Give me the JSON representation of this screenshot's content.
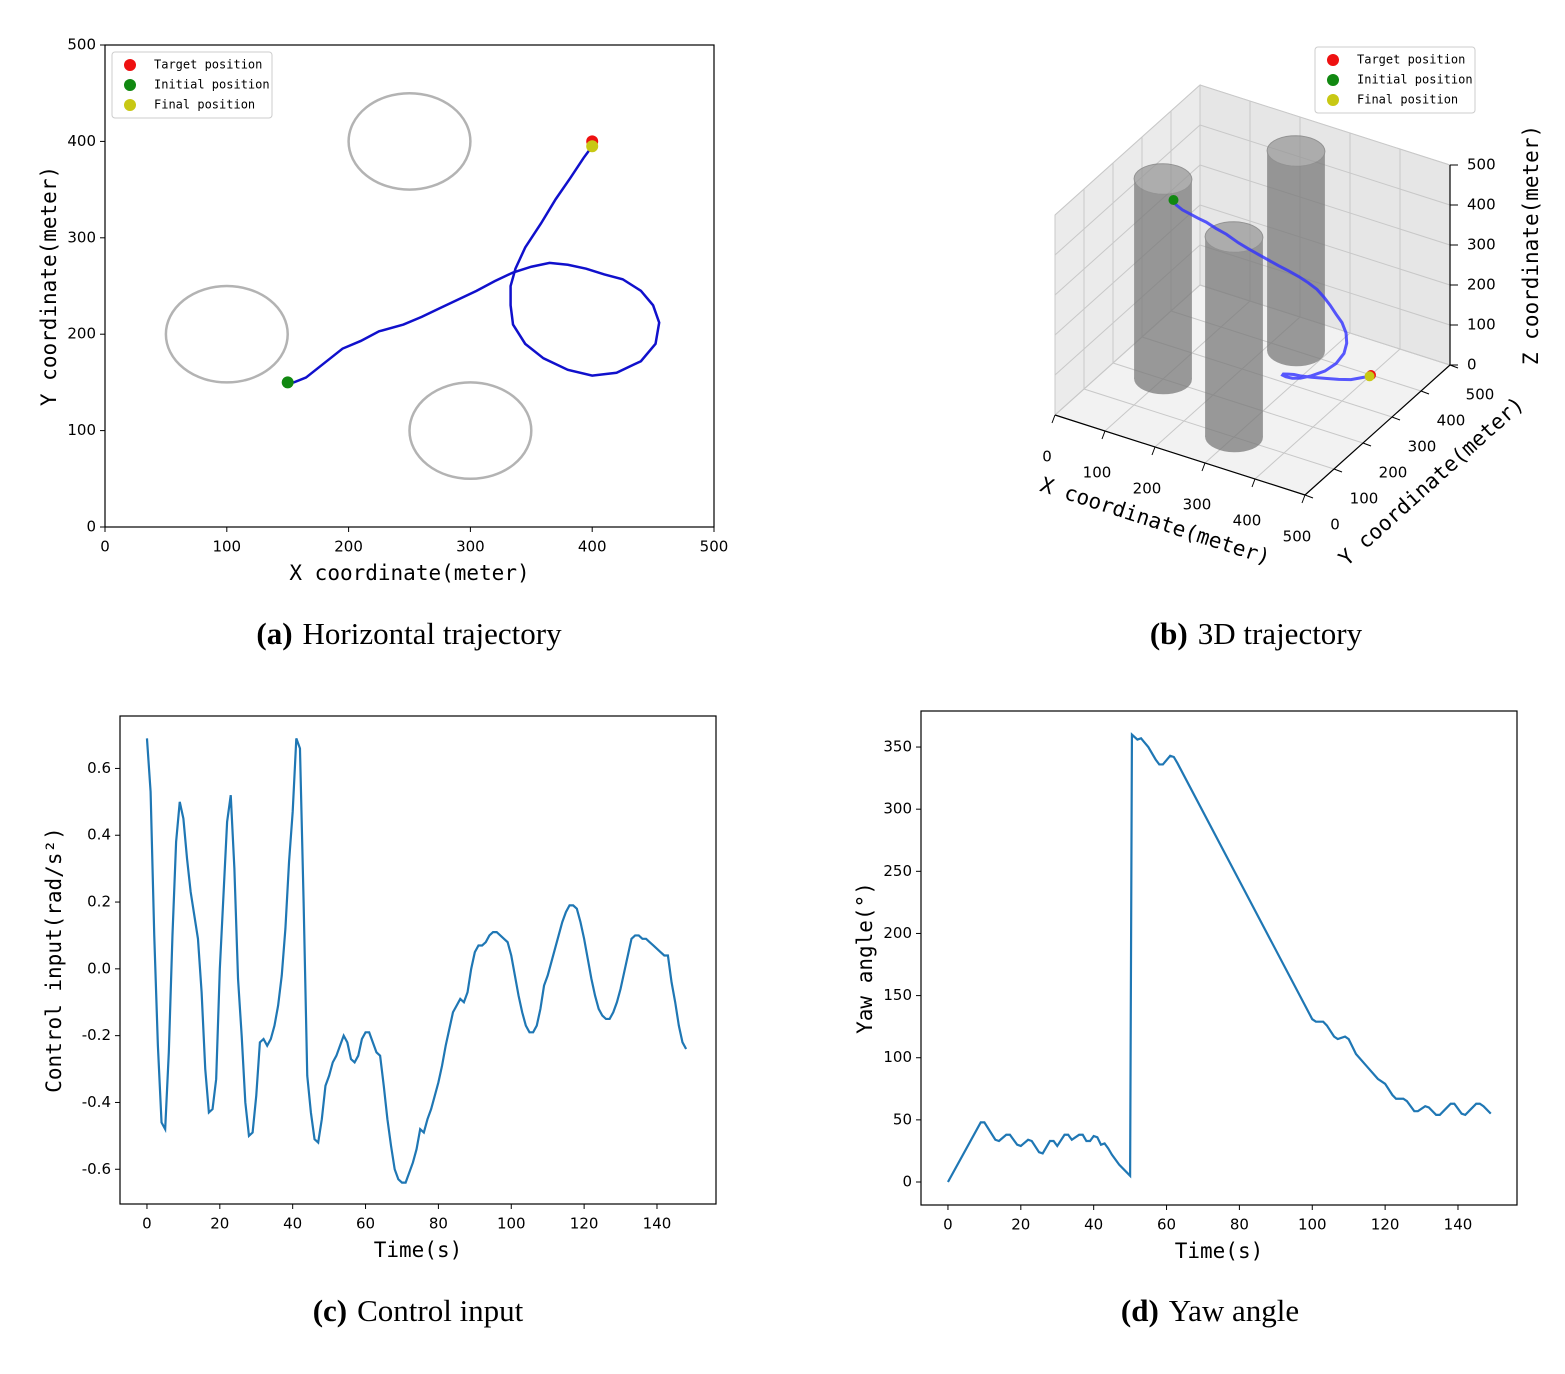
{
  "chart_data": [
    {
      "type": "trajectory-2d",
      "caption_label": "(a)",
      "caption": "Horizontal trajectory",
      "xlabel": "X coordinate(meter)",
      "ylabel": "Y coordinate(meter)",
      "xlim": [
        0,
        500
      ],
      "ylim": [
        0,
        500
      ],
      "xticks": [
        0,
        100,
        200,
        300,
        400,
        500
      ],
      "yticks": [
        0,
        100,
        200,
        300,
        400,
        500
      ],
      "obstacle_color": "#b3b3b3",
      "obstacles": [
        {
          "x": 250,
          "y": 400,
          "r": 50
        },
        {
          "x": 100,
          "y": 200,
          "r": 50
        },
        {
          "x": 300,
          "y": 100,
          "r": 50
        }
      ],
      "trajectory": {
        "color": "#1010cc",
        "x": [
          150,
          155,
          165,
          175,
          185,
          195,
          210,
          225,
          245,
          260,
          275,
          290,
          305,
          320,
          335,
          350,
          365,
          380,
          395,
          410,
          425,
          440,
          450,
          455,
          452,
          440,
          420,
          400,
          380,
          360,
          345,
          335,
          333,
          333,
          337,
          345,
          358,
          370,
          382,
          393,
          400
        ],
        "y": [
          150,
          150,
          155,
          165,
          175,
          185,
          193,
          203,
          210,
          218,
          227,
          236,
          245,
          255,
          264,
          270,
          274,
          272,
          268,
          262,
          257,
          245,
          230,
          212,
          190,
          172,
          160,
          157,
          163,
          175,
          190,
          210,
          230,
          250,
          268,
          290,
          315,
          340,
          362,
          383,
          395
        ]
      },
      "points": [
        {
          "name": "Target position",
          "color": "#ee1111",
          "x": 400,
          "y": 400
        },
        {
          "name": "Initial position",
          "color": "#118811",
          "x": 150,
          "y": 150
        },
        {
          "name": "Final position",
          "color": "#c8c814",
          "x": 400,
          "y": 395
        }
      ],
      "legend": "upper left"
    },
    {
      "type": "trajectory-3d",
      "caption_label": "(b)",
      "caption": "3D trajectory",
      "xlabel": "X coordinate(meter)",
      "ylabel": "Y coordinate(meter)",
      "zlabel": "Z coordinate(meter)",
      "xlim": [
        0,
        500
      ],
      "ylim": [
        0,
        500
      ],
      "zlim": [
        0,
        500
      ],
      "xticks": [
        0,
        100,
        200,
        300,
        400,
        500
      ],
      "yticks": [
        0,
        100,
        200,
        300,
        400,
        500
      ],
      "zticks": [
        0,
        100,
        200,
        300,
        400,
        500
      ],
      "obstacle_color": "#7a7a7a",
      "obstacles": [
        {
          "x": 250,
          "y": 400,
          "r": 50,
          "height": 500
        },
        {
          "x": 100,
          "y": 200,
          "r": 50,
          "height": 500
        },
        {
          "x": 300,
          "y": 100,
          "r": 50,
          "height": 500
        }
      ],
      "trajectory": {
        "color": "#3030ff",
        "x": [
          150,
          155,
          165,
          175,
          185,
          195,
          210,
          225,
          245,
          260,
          275,
          290,
          305,
          320,
          335,
          350,
          365,
          380,
          395,
          410,
          425,
          440,
          450,
          455,
          452,
          440,
          420,
          400,
          380,
          360,
          345,
          335,
          333,
          333,
          337,
          345,
          358,
          370,
          382,
          393,
          400
        ],
        "y": [
          150,
          150,
          155,
          165,
          175,
          185,
          193,
          203,
          210,
          218,
          227,
          236,
          245,
          255,
          264,
          270,
          274,
          272,
          268,
          262,
          257,
          245,
          230,
          212,
          190,
          172,
          160,
          157,
          163,
          175,
          190,
          210,
          230,
          250,
          268,
          290,
          315,
          340,
          362,
          383,
          395
        ],
        "z": [
          500,
          490,
          478,
          465,
          452,
          440,
          425,
          410,
          392,
          378,
          364,
          350,
          336,
          322,
          308,
          295,
          282,
          270,
          258,
          246,
          234,
          222,
          210,
          198,
          186,
          174,
          162,
          150,
          138,
          126,
          114,
          100,
          86,
          72,
          58,
          44,
          30,
          16,
          6,
          2,
          0
        ]
      },
      "points": [
        {
          "name": "Target position",
          "color": "#ee1111",
          "x": 400,
          "y": 400,
          "z": 0
        },
        {
          "name": "Initial position",
          "color": "#118811",
          "x": 150,
          "y": 150,
          "z": 500
        },
        {
          "name": "Final position",
          "color": "#c8c814",
          "x": 400,
          "y": 395,
          "z": 0
        }
      ],
      "legend": "upper right"
    },
    {
      "type": "line",
      "caption_label": "(c)",
      "caption": "Control input",
      "xlabel": "Time(s)",
      "ylabel": "Control input(rad/s²)",
      "color": "#1f77b4",
      "xlim": [
        -7.4,
        156.2
      ],
      "ylim": [
        -0.704,
        0.757
      ],
      "xticks": [
        0,
        20,
        40,
        60,
        80,
        100,
        120,
        140
      ],
      "yticks": [
        -0.6,
        -0.4,
        -0.2,
        {
          "value": 0,
          "label": "0.0"
        },
        0.2,
        0.4,
        0.6
      ],
      "x": [
        0,
        1,
        2,
        3,
        4,
        5,
        6,
        7,
        8,
        9,
        10,
        11,
        12,
        13,
        14,
        15,
        16,
        17,
        18,
        19,
        20,
        21,
        22,
        23,
        24,
        25,
        26,
        27,
        28,
        29,
        30,
        31,
        32,
        33,
        34,
        35,
        36,
        37,
        38,
        39,
        40,
        41,
        42,
        43,
        44,
        45,
        46,
        47,
        48,
        49,
        50,
        51,
        52,
        53,
        54,
        55,
        56,
        57,
        58,
        59,
        60,
        61,
        62,
        63,
        64,
        65,
        66,
        67,
        68,
        69,
        70,
        71,
        72,
        73,
        74,
        75,
        76,
        77,
        78,
        79,
        80,
        81,
        82,
        83,
        84,
        85,
        86,
        87,
        88,
        89,
        90,
        91,
        92,
        93,
        94,
        95,
        96,
        97,
        98,
        99,
        100,
        101,
        102,
        103,
        104,
        105,
        106,
        107,
        108,
        109,
        110,
        111,
        112,
        113,
        114,
        115,
        116,
        117,
        118,
        119,
        120,
        121,
        122,
        123,
        124,
        125,
        126,
        127,
        128,
        129,
        130,
        131,
        132,
        133,
        134,
        135,
        136,
        137,
        138,
        139,
        140,
        141,
        142,
        143,
        144,
        145,
        146,
        147,
        148
      ],
      "values": [
        0.69,
        0.53,
        0.1,
        -0.23,
        -0.46,
        -0.48,
        -0.25,
        0.1,
        0.38,
        0.5,
        0.45,
        0.33,
        0.23,
        0.16,
        0.09,
        -0.07,
        -0.3,
        -0.43,
        -0.42,
        -0.33,
        0.0,
        0.22,
        0.44,
        0.52,
        0.3,
        -0.03,
        -0.2,
        -0.4,
        -0.5,
        -0.49,
        -0.38,
        -0.22,
        -0.21,
        -0.23,
        -0.21,
        -0.17,
        -0.11,
        -0.02,
        0.12,
        0.32,
        0.47,
        0.69,
        0.66,
        0.2,
        -0.32,
        -0.43,
        -0.51,
        -0.52,
        -0.45,
        -0.35,
        -0.32,
        -0.28,
        -0.26,
        -0.23,
        -0.2,
        -0.22,
        -0.27,
        -0.28,
        -0.26,
        -0.21,
        -0.19,
        -0.19,
        -0.22,
        -0.25,
        -0.26,
        -0.35,
        -0.45,
        -0.53,
        -0.6,
        -0.63,
        -0.64,
        -0.64,
        -0.61,
        -0.58,
        -0.54,
        -0.48,
        -0.49,
        -0.45,
        -0.42,
        -0.38,
        -0.34,
        -0.29,
        -0.23,
        -0.18,
        -0.13,
        -0.11,
        -0.09,
        -0.1,
        -0.07,
        0.0,
        0.05,
        0.07,
        0.07,
        0.08,
        0.1,
        0.11,
        0.11,
        0.1,
        0.09,
        0.08,
        0.04,
        -0.02,
        -0.08,
        -0.13,
        -0.17,
        -0.19,
        -0.19,
        -0.17,
        -0.12,
        -0.05,
        -0.02,
        0.02,
        0.06,
        0.1,
        0.14,
        0.17,
        0.19,
        0.19,
        0.18,
        0.14,
        0.09,
        0.03,
        -0.03,
        -0.08,
        -0.12,
        -0.14,
        -0.15,
        -0.15,
        -0.13,
        -0.1,
        -0.06,
        -0.01,
        0.04,
        0.09,
        0.1,
        0.1,
        0.09,
        0.09,
        0.08,
        0.07,
        0.06,
        0.05,
        0.04,
        0.04,
        -0.04,
        -0.1,
        -0.17,
        -0.22,
        -0.24
      ]
    },
    {
      "type": "line",
      "caption_label": "(d)",
      "caption": "Yaw angle",
      "xlabel": "Time(s)",
      "ylabel": "Yaw angle(°)",
      "color": "#1f77b4",
      "xlim": [
        -7.4,
        156.2
      ],
      "ylim": [
        -18.5,
        379
      ],
      "xticks": [
        0,
        20,
        40,
        60,
        80,
        100,
        120,
        140
      ],
      "yticks": [
        0,
        50,
        100,
        150,
        200,
        250,
        300,
        350
      ],
      "x": [
        0,
        9,
        10,
        13,
        14,
        16,
        17,
        19,
        20,
        22,
        23,
        25,
        26,
        28,
        29,
        30,
        32,
        33,
        34,
        36,
        37,
        38,
        39,
        40,
        41,
        42,
        43,
        44,
        45,
        47,
        50,
        50.5,
        52,
        53,
        55,
        57,
        58,
        59,
        61,
        62,
        63,
        100,
        101,
        103,
        104,
        106,
        107,
        109,
        110,
        112,
        115,
        118,
        120,
        122,
        123,
        125,
        126,
        128,
        129,
        131,
        132,
        134,
        135,
        137,
        138,
        139,
        141,
        142,
        144,
        145,
        146,
        147,
        149
      ],
      "values": [
        0,
        48,
        48,
        34,
        33,
        38,
        38,
        30,
        29,
        34,
        33,
        24,
        23,
        33,
        33,
        29,
        38,
        38,
        34,
        38,
        38,
        33,
        33,
        37,
        36,
        30,
        31,
        27,
        22,
        14,
        5,
        360,
        356,
        357,
        350,
        340,
        336,
        336,
        343,
        342,
        337,
        131,
        129,
        129,
        126,
        117,
        115,
        117,
        115,
        103,
        93,
        83,
        79,
        70,
        67,
        67,
        65,
        57,
        57,
        61,
        60,
        54,
        54,
        60,
        63,
        63,
        55,
        54,
        60,
        63,
        63,
        61,
        55
      ]
    }
  ]
}
